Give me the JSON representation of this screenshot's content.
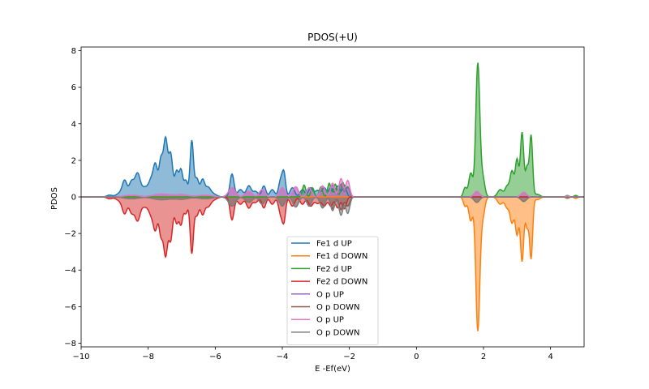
{
  "chart_data": {
    "type": "area",
    "title": "PDOS(+U)",
    "xlabel": "E -Ef(eV)",
    "ylabel": "PDOS",
    "xlim": [
      -10,
      5
    ],
    "ylim": [
      -8.2,
      8.2
    ],
    "xticks": [
      -10,
      -8,
      -6,
      -4,
      -2,
      0,
      2,
      4
    ],
    "yticks": [
      -8,
      -6,
      -4,
      -2,
      0,
      2,
      4,
      6,
      8
    ],
    "grid": false,
    "legend_position": "lower-center",
    "series": [
      {
        "name": "Fe1 d UP",
        "color": "#1f77b4",
        "sign": 1,
        "peaks": [
          [
            -9.15,
            0.1,
            0.08
          ],
          [
            -8.85,
            0.2,
            0.1
          ],
          [
            -8.7,
            0.85,
            0.07
          ],
          [
            -8.5,
            0.8,
            0.07
          ],
          [
            -8.32,
            1.25,
            0.08
          ],
          [
            -8.1,
            0.5,
            0.1
          ],
          [
            -7.9,
            0.9,
            0.08
          ],
          [
            -7.78,
            1.5,
            0.06
          ],
          [
            -7.62,
            2.0,
            0.06
          ],
          [
            -7.48,
            3.05,
            0.06
          ],
          [
            -7.33,
            2.3,
            0.06
          ],
          [
            -7.15,
            1.4,
            0.06
          ],
          [
            -7.02,
            1.35,
            0.05
          ],
          [
            -6.88,
            0.9,
            0.06
          ],
          [
            -6.7,
            3.05,
            0.05
          ],
          [
            -6.55,
            1.0,
            0.06
          ],
          [
            -6.38,
            0.9,
            0.06
          ],
          [
            -6.22,
            0.5,
            0.08
          ],
          [
            -6.05,
            0.15,
            0.1
          ],
          [
            -5.5,
            1.25,
            0.06
          ],
          [
            -5.25,
            0.4,
            0.08
          ],
          [
            -5.0,
            0.6,
            0.07
          ],
          [
            -4.8,
            0.3,
            0.08
          ],
          [
            -4.55,
            0.6,
            0.06
          ],
          [
            -4.3,
            0.4,
            0.07
          ],
          [
            -4.05,
            0.9,
            0.06
          ],
          [
            -3.95,
            1.2,
            0.05
          ],
          [
            -3.7,
            0.5,
            0.07
          ],
          [
            -3.4,
            0.4,
            0.07
          ],
          [
            -3.15,
            0.5,
            0.07
          ],
          [
            -2.95,
            0.35,
            0.07
          ],
          [
            -2.75,
            0.5,
            0.07
          ],
          [
            -2.55,
            0.5,
            0.06
          ],
          [
            -2.35,
            0.6,
            0.06
          ],
          [
            -2.15,
            0.65,
            0.06
          ]
        ]
      },
      {
        "name": "Fe1 d DOWN",
        "color": "#ff7f0e",
        "sign": -1,
        "peaks": [
          [
            1.45,
            0.5,
            0.05
          ],
          [
            1.62,
            1.3,
            0.06
          ],
          [
            1.83,
            7.3,
            0.06
          ],
          [
            1.98,
            1.0,
            0.06
          ],
          [
            2.5,
            0.4,
            0.08
          ],
          [
            2.7,
            0.55,
            0.06
          ],
          [
            2.85,
            1.4,
            0.06
          ],
          [
            3.0,
            2.0,
            0.05
          ],
          [
            3.15,
            3.5,
            0.05
          ],
          [
            3.3,
            1.6,
            0.05
          ],
          [
            3.42,
            3.3,
            0.045
          ],
          [
            3.6,
            0.15,
            0.08
          ],
          [
            4.5,
            0.08,
            0.05
          ],
          [
            4.75,
            0.08,
            0.05
          ]
        ]
      },
      {
        "name": "Fe2 d UP",
        "color": "#2ca02c",
        "sign": 1,
        "peaks": [
          [
            1.45,
            0.5,
            0.05
          ],
          [
            1.62,
            1.3,
            0.06
          ],
          [
            1.83,
            7.3,
            0.06
          ],
          [
            1.98,
            1.0,
            0.06
          ],
          [
            2.5,
            0.4,
            0.08
          ],
          [
            2.7,
            0.55,
            0.06
          ],
          [
            2.85,
            1.4,
            0.06
          ],
          [
            3.0,
            2.0,
            0.05
          ],
          [
            3.15,
            3.5,
            0.05
          ],
          [
            3.3,
            1.6,
            0.05
          ],
          [
            3.42,
            3.3,
            0.045
          ],
          [
            3.6,
            0.15,
            0.08
          ],
          [
            -3.35,
            0.65,
            0.05
          ],
          [
            -3.1,
            0.5,
            0.05
          ],
          [
            -2.85,
            0.55,
            0.05
          ],
          [
            -2.6,
            0.75,
            0.05
          ],
          [
            -2.42,
            0.7,
            0.05
          ],
          [
            -2.2,
            0.8,
            0.05
          ],
          [
            -2.05,
            0.55,
            0.05
          ],
          [
            4.5,
            0.08,
            0.05
          ],
          [
            4.75,
            0.08,
            0.05
          ]
        ]
      },
      {
        "name": "Fe2 d DOWN",
        "color": "#d62728",
        "sign": -1,
        "peaks": [
          [
            -9.15,
            0.1,
            0.08
          ],
          [
            -8.85,
            0.2,
            0.1
          ],
          [
            -8.7,
            0.85,
            0.07
          ],
          [
            -8.5,
            0.8,
            0.07
          ],
          [
            -8.32,
            1.25,
            0.08
          ],
          [
            -8.1,
            0.5,
            0.1
          ],
          [
            -7.9,
            0.9,
            0.08
          ],
          [
            -7.78,
            1.5,
            0.06
          ],
          [
            -7.62,
            2.0,
            0.06
          ],
          [
            -7.48,
            3.05,
            0.06
          ],
          [
            -7.33,
            2.3,
            0.06
          ],
          [
            -7.15,
            1.4,
            0.06
          ],
          [
            -7.02,
            1.35,
            0.05
          ],
          [
            -6.88,
            0.9,
            0.06
          ],
          [
            -6.7,
            3.05,
            0.05
          ],
          [
            -6.55,
            1.0,
            0.06
          ],
          [
            -6.38,
            0.9,
            0.06
          ],
          [
            -6.22,
            0.5,
            0.08
          ],
          [
            -6.05,
            0.15,
            0.1
          ],
          [
            -5.5,
            1.25,
            0.06
          ],
          [
            -5.25,
            0.4,
            0.08
          ],
          [
            -5.0,
            0.6,
            0.07
          ],
          [
            -4.8,
            0.3,
            0.08
          ],
          [
            -4.55,
            0.6,
            0.06
          ],
          [
            -4.3,
            0.4,
            0.07
          ],
          [
            -4.05,
            0.9,
            0.06
          ],
          [
            -3.95,
            1.2,
            0.05
          ],
          [
            -3.7,
            0.5,
            0.07
          ],
          [
            -3.4,
            0.4,
            0.07
          ],
          [
            -3.15,
            0.5,
            0.07
          ],
          [
            -2.95,
            0.35,
            0.07
          ],
          [
            -2.75,
            0.5,
            0.07
          ],
          [
            -2.55,
            0.5,
            0.06
          ],
          [
            -2.35,
            0.6,
            0.06
          ],
          [
            -2.15,
            0.65,
            0.06
          ]
        ]
      },
      {
        "name": "O p UP",
        "color": "#9467bd",
        "sign": 1,
        "peaks": [
          [
            -8.5,
            0.1,
            0.2
          ],
          [
            -7.6,
            0.15,
            0.25
          ],
          [
            -7.0,
            0.12,
            0.2
          ],
          [
            -6.3,
            0.1,
            0.2
          ],
          [
            -5.5,
            0.5,
            0.1
          ],
          [
            -5.0,
            0.3,
            0.1
          ],
          [
            -4.6,
            0.4,
            0.08
          ],
          [
            -4.0,
            0.5,
            0.08
          ],
          [
            -3.6,
            0.55,
            0.08
          ],
          [
            -3.2,
            0.5,
            0.07
          ],
          [
            -2.8,
            0.6,
            0.07
          ],
          [
            -2.5,
            0.65,
            0.06
          ],
          [
            -2.25,
            0.7,
            0.06
          ],
          [
            -2.05,
            0.5,
            0.06
          ],
          [
            1.8,
            0.3,
            0.08
          ],
          [
            3.2,
            0.25,
            0.08
          ],
          [
            4.5,
            0.05,
            0.05
          ]
        ]
      },
      {
        "name": "O p DOWN",
        "color": "#8c564b",
        "sign": -1,
        "peaks": [
          [
            -8.5,
            0.1,
            0.2
          ],
          [
            -7.6,
            0.15,
            0.25
          ],
          [
            -7.0,
            0.12,
            0.2
          ],
          [
            -6.3,
            0.1,
            0.2
          ],
          [
            -5.5,
            0.5,
            0.1
          ],
          [
            -5.0,
            0.3,
            0.1
          ],
          [
            -4.6,
            0.4,
            0.08
          ],
          [
            -4.0,
            0.5,
            0.08
          ],
          [
            -3.6,
            0.55,
            0.08
          ],
          [
            -3.2,
            0.5,
            0.07
          ],
          [
            -2.8,
            0.6,
            0.07
          ],
          [
            -2.5,
            0.65,
            0.06
          ],
          [
            -2.25,
            0.7,
            0.06
          ],
          [
            -2.05,
            0.5,
            0.06
          ],
          [
            1.8,
            0.3,
            0.08
          ],
          [
            3.2,
            0.25,
            0.08
          ],
          [
            4.5,
            0.05,
            0.05
          ]
        ]
      },
      {
        "name": "O p UP",
        "color": "#e377c2",
        "sign": 1,
        "peaks": [
          [
            -8.5,
            0.1,
            0.2
          ],
          [
            -7.6,
            0.15,
            0.25
          ],
          [
            -7.0,
            0.12,
            0.2
          ],
          [
            -6.3,
            0.1,
            0.2
          ],
          [
            -5.5,
            0.5,
            0.1
          ],
          [
            -5.0,
            0.3,
            0.1
          ],
          [
            -4.6,
            0.4,
            0.08
          ],
          [
            -4.0,
            0.5,
            0.08
          ],
          [
            -3.6,
            0.55,
            0.08
          ],
          [
            -3.2,
            0.5,
            0.07
          ],
          [
            -2.8,
            0.6,
            0.07
          ],
          [
            -2.5,
            0.75,
            0.06
          ],
          [
            -2.25,
            1.0,
            0.06
          ],
          [
            -2.05,
            0.9,
            0.06
          ],
          [
            1.8,
            0.3,
            0.08
          ],
          [
            3.2,
            0.25,
            0.08
          ],
          [
            4.5,
            0.05,
            0.05
          ]
        ]
      },
      {
        "name": "O p DOWN",
        "color": "#7f7f7f",
        "sign": -1,
        "peaks": [
          [
            -8.5,
            0.1,
            0.2
          ],
          [
            -7.6,
            0.15,
            0.25
          ],
          [
            -7.0,
            0.12,
            0.2
          ],
          [
            -6.3,
            0.1,
            0.2
          ],
          [
            -5.5,
            0.5,
            0.1
          ],
          [
            -5.0,
            0.3,
            0.1
          ],
          [
            -4.6,
            0.4,
            0.08
          ],
          [
            -4.0,
            0.5,
            0.08
          ],
          [
            -3.6,
            0.55,
            0.08
          ],
          [
            -3.2,
            0.5,
            0.07
          ],
          [
            -2.8,
            0.6,
            0.07
          ],
          [
            -2.5,
            0.75,
            0.06
          ],
          [
            -2.25,
            1.0,
            0.06
          ],
          [
            -2.05,
            0.9,
            0.06
          ],
          [
            1.8,
            0.3,
            0.08
          ],
          [
            3.2,
            0.25,
            0.08
          ],
          [
            4.5,
            0.05,
            0.05
          ]
        ]
      }
    ]
  }
}
